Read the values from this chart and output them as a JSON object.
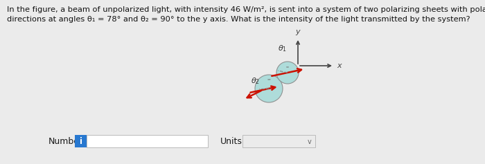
{
  "background_color": "#ebebeb",
  "title_line1": "In the figure, a beam of unpolarized light, with intensity 46 W/m², is sent into a system of two polarizing sheets with polarizing",
  "title_line2": "directions at angles θ₁ = 78° and θ₂ = 90° to the y axis. What is the intensity of the light transmitted by the system?",
  "title_fontsize": 8.2,
  "title_color": "#111111",
  "number_label": "Number",
  "units_label": "Units",
  "info_button_color": "#2878d0",
  "info_button_text": "i",
  "fig_width": 7.0,
  "fig_height": 2.37,
  "dpi": 100,
  "sheet_color": "#a8dbd9",
  "sheet_edge_color": "#888888",
  "axes_color": "#444444",
  "arrow_color": "#cc1100",
  "line_color": "#888888",
  "angle_arc_color": "#777777",
  "label_color": "#333333"
}
